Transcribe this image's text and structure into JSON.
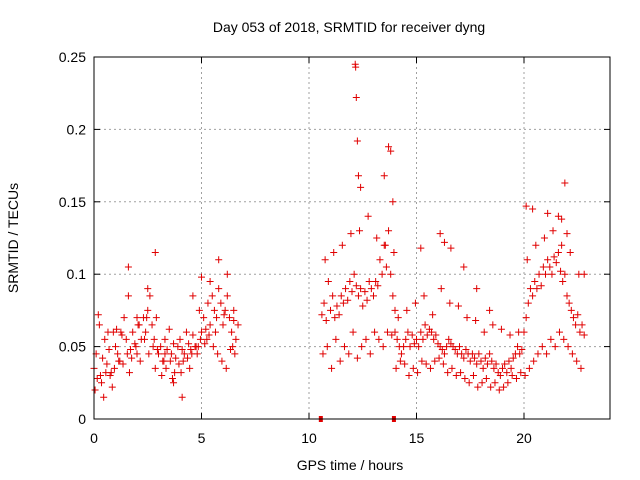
{
  "chart_data": {
    "type": "scatter",
    "title": "Day 053 of 2018, SRMTID for receiver dyng",
    "xlabel": "GPS time / hours",
    "ylabel": "SRMTID / TECUs",
    "xlim": [
      0,
      24
    ],
    "ylim": [
      0,
      0.25
    ],
    "x_ticks": [
      0,
      5,
      10,
      15,
      20
    ],
    "x_tick_labels": [
      "0",
      "5",
      "10",
      "15",
      "20"
    ],
    "y_ticks": [
      0,
      0.05,
      0.1,
      0.15,
      0.2,
      0.25
    ],
    "y_tick_labels": [
      "0",
      "0.05",
      "0.1",
      "0.15",
      "0.2",
      "0.25"
    ],
    "grid": true,
    "marker": "plus",
    "color": "#e00000",
    "series": [
      {
        "name": "SRMTID",
        "x": [
          0.0,
          0.1,
          0.2,
          0.3,
          0.4,
          0.5,
          0.6,
          0.7,
          0.8,
          0.9,
          1.0,
          1.1,
          1.2,
          1.3,
          1.4,
          1.5,
          1.6,
          1.7,
          1.8,
          1.9,
          2.0,
          2.1,
          2.2,
          2.3,
          2.4,
          2.5,
          2.6,
          2.7,
          2.8,
          2.9,
          3.0,
          3.1,
          3.2,
          3.3,
          3.4,
          3.5,
          3.6,
          3.7,
          3.8,
          3.9,
          4.0,
          4.1,
          4.2,
          4.3,
          4.4,
          4.5,
          4.6,
          4.7,
          4.8,
          4.9,
          5.0,
          5.1,
          5.2,
          5.3,
          5.4,
          5.5,
          5.6,
          5.7,
          5.8,
          5.9,
          6.0,
          6.1,
          6.2,
          6.3,
          6.4,
          6.5,
          6.6,
          6.7,
          0.15,
          0.35,
          0.55,
          0.75,
          0.95,
          1.15,
          1.35,
          1.55,
          1.75,
          1.95,
          2.15,
          2.35,
          2.55,
          2.75,
          2.95,
          3.15,
          3.35,
          3.55,
          3.75,
          3.95,
          4.15,
          4.35,
          4.55,
          4.75,
          4.95,
          5.15,
          5.35,
          5.55,
          5.75,
          5.95,
          6.15,
          6.35,
          6.55,
          0.25,
          0.65,
          1.05,
          1.6,
          2.0,
          2.5,
          2.85,
          3.3,
          3.7,
          4.1,
          4.6,
          5.0,
          5.4,
          5.8,
          6.2,
          6.5,
          0.05,
          0.45,
          0.85,
          1.25,
          1.65,
          2.05,
          2.45,
          2.85,
          3.25,
          3.65,
          4.05,
          4.45,
          4.85,
          5.25,
          5.65,
          6.05,
          6.45,
          10.6,
          10.7,
          10.8,
          10.9,
          11.0,
          11.1,
          11.2,
          11.3,
          11.4,
          11.5,
          11.6,
          11.7,
          11.8,
          11.9,
          12.0,
          12.1,
          12.2,
          12.3,
          12.4,
          12.5,
          12.6,
          12.7,
          12.8,
          12.9,
          13.0,
          13.1,
          13.2,
          13.3,
          13.4,
          13.5,
          13.6,
          13.7,
          13.8,
          13.9,
          14.0,
          10.65,
          10.85,
          11.05,
          11.25,
          11.45,
          11.65,
          11.85,
          12.05,
          12.25,
          12.45,
          12.65,
          12.85,
          13.05,
          13.25,
          13.45,
          13.65,
          13.85,
          10.75,
          11.15,
          11.55,
          11.95,
          12.35,
          12.75,
          13.15,
          13.55,
          13.95,
          12.15,
          12.17,
          12.2,
          12.25,
          12.3,
          12.4,
          13.5,
          13.7,
          13.8,
          13.9,
          14.0,
          14.1,
          14.2,
          14.3,
          14.4,
          14.5,
          14.6,
          14.7,
          14.8,
          14.9,
          15.0,
          15.1,
          15.2,
          15.3,
          15.4,
          15.5,
          15.6,
          15.7,
          15.8,
          15.9,
          16.0,
          16.1,
          16.2,
          16.3,
          16.4,
          16.5,
          16.6,
          16.7,
          16.8,
          16.9,
          17.0,
          17.1,
          17.2,
          17.3,
          17.4,
          17.5,
          17.6,
          17.7,
          17.8,
          17.9,
          18.0,
          18.1,
          18.2,
          18.3,
          18.4,
          18.5,
          18.6,
          18.7,
          18.8,
          18.9,
          19.0,
          19.1,
          19.2,
          19.3,
          19.4,
          19.5,
          19.6,
          19.7,
          19.8,
          19.9,
          14.05,
          14.25,
          14.45,
          14.65,
          14.85,
          15.05,
          15.25,
          15.45,
          15.65,
          15.85,
          16.05,
          16.25,
          16.45,
          16.65,
          16.85,
          17.05,
          17.25,
          17.45,
          17.65,
          17.85,
          18.05,
          18.25,
          18.45,
          18.65,
          18.85,
          19.05,
          19.25,
          19.45,
          19.65,
          19.85,
          14.15,
          14.55,
          14.95,
          15.35,
          15.75,
          16.15,
          16.55,
          16.95,
          17.35,
          17.75,
          18.15,
          18.55,
          18.95,
          19.35,
          19.75,
          15.2,
          16.1,
          16.3,
          16.6,
          17.2,
          17.8,
          18.4,
          20.0,
          20.1,
          20.2,
          20.3,
          20.4,
          20.5,
          20.6,
          20.7,
          20.8,
          20.9,
          21.0,
          21.1,
          21.2,
          21.3,
          21.4,
          21.5,
          21.6,
          21.7,
          21.8,
          21.9,
          22.0,
          22.1,
          22.2,
          22.3,
          22.4,
          22.5,
          22.6,
          22.7,
          22.8,
          20.05,
          20.25,
          20.45,
          20.65,
          20.85,
          21.05,
          21.25,
          21.45,
          21.65,
          21.85,
          22.05,
          22.25,
          22.45,
          22.65,
          20.15,
          20.55,
          20.95,
          21.35,
          21.75,
          22.15,
          22.55,
          20.1,
          20.4,
          21.1,
          21.6,
          21.75,
          21.9,
          22.0,
          22.8
        ],
        "y": [
          0.035,
          0.045,
          0.072,
          0.03,
          0.042,
          0.055,
          0.038,
          0.048,
          0.032,
          0.06,
          0.05,
          0.045,
          0.04,
          0.058,
          0.07,
          0.055,
          0.085,
          0.048,
          0.06,
          0.052,
          0.045,
          0.065,
          0.055,
          0.07,
          0.06,
          0.075,
          0.085,
          0.065,
          0.055,
          0.07,
          0.045,
          0.05,
          0.04,
          0.055,
          0.048,
          0.062,
          0.045,
          0.052,
          0.042,
          0.05,
          0.055,
          0.048,
          0.045,
          0.06,
          0.052,
          0.048,
          0.058,
          0.05,
          0.045,
          0.075,
          0.06,
          0.07,
          0.062,
          0.08,
          0.065,
          0.085,
          0.075,
          0.07,
          0.09,
          0.08,
          0.065,
          0.075,
          0.085,
          0.07,
          0.06,
          0.068,
          0.055,
          0.065,
          0.028,
          0.025,
          0.032,
          0.03,
          0.035,
          0.04,
          0.038,
          0.045,
          0.042,
          0.05,
          0.04,
          0.055,
          0.045,
          0.05,
          0.048,
          0.03,
          0.035,
          0.04,
          0.032,
          0.038,
          0.04,
          0.042,
          0.045,
          0.05,
          0.055,
          0.052,
          0.058,
          0.05,
          0.045,
          0.04,
          0.035,
          0.048,
          0.045,
          0.065,
          0.06,
          0.062,
          0.105,
          0.07,
          0.09,
          0.115,
          0.045,
          0.025,
          0.015,
          0.085,
          0.098,
          0.095,
          0.11,
          0.1,
          0.075,
          0.02,
          0.015,
          0.022,
          0.06,
          0.032,
          0.065,
          0.07,
          0.035,
          0.04,
          0.028,
          0.032,
          0.035,
          0.05,
          0.055,
          0.06,
          0.072,
          0.05,
          0.072,
          0.08,
          0.068,
          0.095,
          0.075,
          0.085,
          0.07,
          0.078,
          0.072,
          0.085,
          0.08,
          0.09,
          0.082,
          0.095,
          0.088,
          0.1,
          0.092,
          0.085,
          0.09,
          0.078,
          0.088,
          0.082,
          0.095,
          0.09,
          0.085,
          0.095,
          0.092,
          0.11,
          0.1,
          0.12,
          0.105,
          0.13,
          0.1,
          0.085,
          0.075,
          0.045,
          0.05,
          0.035,
          0.055,
          0.04,
          0.05,
          0.045,
          0.06,
          0.042,
          0.05,
          0.055,
          0.045,
          0.06,
          0.055,
          0.05,
          0.06,
          0.058,
          0.11,
          0.115,
          0.12,
          0.128,
          0.13,
          0.14,
          0.125,
          0.12,
          0.115,
          0.245,
          0.243,
          0.222,
          0.192,
          0.168,
          0.16,
          0.168,
          0.188,
          0.185,
          0.15,
          0.06,
          0.055,
          0.05,
          0.045,
          0.05,
          0.055,
          0.06,
          0.05,
          0.058,
          0.052,
          0.055,
          0.05,
          0.06,
          0.055,
          0.065,
          0.058,
          0.062,
          0.06,
          0.055,
          0.058,
          0.052,
          0.05,
          0.048,
          0.045,
          0.05,
          0.055,
          0.052,
          0.05,
          0.048,
          0.045,
          0.05,
          0.045,
          0.042,
          0.048,
          0.045,
          0.04,
          0.045,
          0.042,
          0.038,
          0.045,
          0.04,
          0.035,
          0.042,
          0.038,
          0.045,
          0.04,
          0.035,
          0.038,
          0.032,
          0.03,
          0.035,
          0.038,
          0.032,
          0.04,
          0.035,
          0.042,
          0.045,
          0.05,
          0.045,
          0.048,
          0.035,
          0.04,
          0.038,
          0.03,
          0.035,
          0.032,
          0.04,
          0.038,
          0.035,
          0.04,
          0.042,
          0.038,
          0.032,
          0.035,
          0.03,
          0.032,
          0.028,
          0.025,
          0.03,
          0.022,
          0.025,
          0.028,
          0.022,
          0.025,
          0.02,
          0.022,
          0.025,
          0.03,
          0.028,
          0.032,
          0.07,
          0.075,
          0.08,
          0.085,
          0.072,
          0.09,
          0.08,
          0.078,
          0.07,
          0.068,
          0.06,
          0.065,
          0.062,
          0.058,
          0.06,
          0.118,
          0.128,
          0.122,
          0.118,
          0.105,
          0.09,
          0.075,
          0.06,
          0.07,
          0.08,
          0.09,
          0.085,
          0.095,
          0.09,
          0.1,
          0.092,
          0.105,
          0.1,
          0.11,
          0.105,
          0.1,
          0.112,
          0.108,
          0.115,
          0.102,
          0.095,
          0.1,
          0.085,
          0.08,
          0.075,
          0.07,
          0.065,
          0.072,
          0.06,
          0.065,
          0.058,
          0.03,
          0.035,
          0.04,
          0.045,
          0.05,
          0.045,
          0.055,
          0.05,
          0.06,
          0.055,
          0.05,
          0.045,
          0.04,
          0.035,
          0.11,
          0.12,
          0.125,
          0.13,
          0.12,
          0.115,
          0.1,
          0.147,
          0.145,
          0.142,
          0.14,
          0.138,
          0.163,
          0.128,
          0.1
        ],
        "y_zero_points_x": [
          10.55,
          13.95
        ]
      }
    ]
  }
}
